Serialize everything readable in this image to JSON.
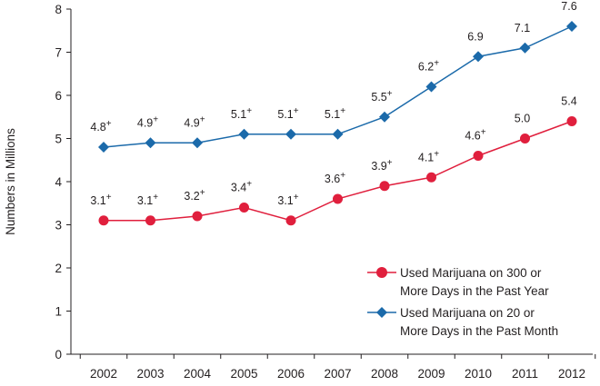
{
  "chart_data": {
    "type": "line",
    "title": "",
    "xlabel": "",
    "ylabel": "Numbers in Millions",
    "ylim": [
      0,
      8
    ],
    "yticks": [
      "0",
      "1",
      "2",
      "3",
      "4",
      "5",
      "6",
      "7",
      "8"
    ],
    "grid": false,
    "legend_position": "bottom-right",
    "categories": [
      "2002",
      "2003",
      "2004",
      "2005",
      "2006",
      "2007",
      "2008",
      "2009",
      "2010",
      "2011",
      "2012"
    ],
    "series": [
      {
        "name": "Used Marijuana on 20 or More Days in the Past Month",
        "legend_lines": [
          "Used Marijuana on 20 or",
          "More Days in the Past Month"
        ],
        "marker": "diamond",
        "color": "#1b6aaa",
        "values": [
          4.8,
          4.9,
          4.9,
          5.1,
          5.1,
          5.1,
          5.5,
          6.2,
          6.9,
          7.1,
          7.6
        ],
        "labels": [
          "4.8",
          "4.9",
          "4.9",
          "5.1",
          "5.1",
          "5.1",
          "5.5",
          "6.2",
          "6.9",
          "7.1",
          "7.6"
        ],
        "flags": [
          "+",
          "+",
          "+",
          "+",
          "+",
          "+",
          "+",
          "+",
          "",
          "",
          ""
        ]
      },
      {
        "name": "Used Marijuana on 300 or More Days in the Past Year",
        "legend_lines": [
          "Used Marijuana on 300 or",
          "More Days in the Past Year"
        ],
        "marker": "circle",
        "color": "#e01f3d",
        "values": [
          3.1,
          3.1,
          3.2,
          3.4,
          3.1,
          3.6,
          3.9,
          4.1,
          4.6,
          5.0,
          5.4
        ],
        "labels": [
          "3.1",
          "3.1",
          "3.2",
          "3.4",
          "3.1",
          "3.6",
          "3.9",
          "4.1",
          "4.6",
          "5.0",
          "5.4"
        ],
        "flags": [
          "+",
          "+",
          "+",
          "+",
          "+",
          "+",
          "+",
          "+",
          "+",
          "",
          ""
        ]
      }
    ],
    "legend_order": [
      1,
      0
    ]
  }
}
